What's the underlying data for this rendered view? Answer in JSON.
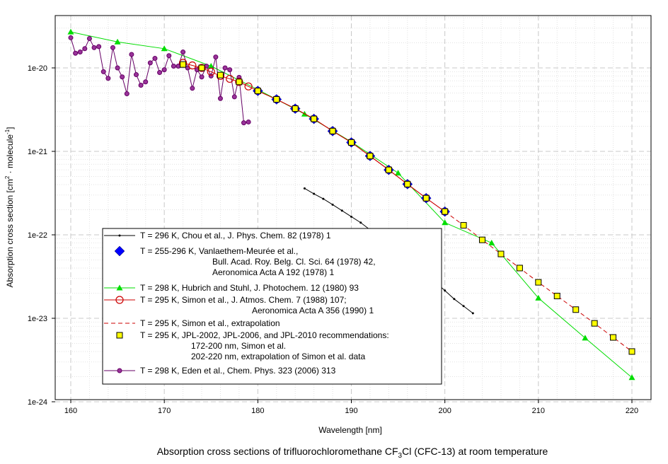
{
  "chart_data": {
    "type": "line",
    "yscale": "log",
    "xlim": [
      158,
      222
    ],
    "ylim": [
      1e-24,
      3.7e-20
    ],
    "xticks": [
      "160",
      "170",
      "180",
      "190",
      "200",
      "210",
      "220"
    ],
    "yticks": [
      "1e-20",
      "1e-21",
      "1e-22",
      "1e-23",
      "1e-24"
    ],
    "xlabel": "Wavelength [nm]",
    "ylabel": {
      "main": "Absorption cross section [cm",
      "sup1": "2",
      "mid": " · molecule",
      "sup2": "-1",
      "end": "]"
    },
    "caption": {
      "pre": "Absorption cross sections of trifluorochloromethane CF",
      "sub": "3",
      "post": "Cl (CFC-13) at room temperature"
    },
    "series": [
      {
        "name": "Chou",
        "color": "#000000",
        "marker": "dot",
        "x": [
          185,
          186,
          187,
          188,
          189,
          190,
          191,
          192,
          193,
          194,
          195,
          196,
          197,
          198,
          199,
          200,
          201,
          202,
          203
        ],
        "y": [
          3.6e-22,
          3.1e-22,
          2.7e-22,
          2.3e-22,
          1.95e-22,
          1.65e-22,
          1.4e-22,
          1.15e-22,
          9.4e-23,
          7.8e-23,
          6.4e-23,
          5.2e-23,
          4.2e-23,
          3.4e-23,
          2.7e-23,
          2.15e-23,
          1.7e-23,
          1.4e-23,
          1.15e-23
        ]
      },
      {
        "name": "Vanlaethem",
        "color": "#0000ff",
        "marker": "diamond",
        "x": [
          180,
          182,
          184,
          186,
          188,
          190,
          192,
          194,
          196,
          198,
          200
        ],
        "y": [
          5.3e-21,
          4.2e-21,
          3.25e-21,
          2.45e-21,
          1.75e-21,
          1.28e-21,
          8.8e-22,
          6e-22,
          4.05e-22,
          2.75e-22,
          1.9e-22
        ]
      },
      {
        "name": "Hubrich",
        "color": "#00dd00",
        "marker": "triangle",
        "x": [
          160,
          165,
          170,
          175,
          180,
          185,
          190,
          195,
          200,
          205,
          210,
          215,
          220
        ],
        "y": [
          2.7e-20,
          2.05e-20,
          1.7e-20,
          1.05e-20,
          5.5e-21,
          2.8e-21,
          1.3e-21,
          5.5e-22,
          1.4e-22,
          8e-23,
          1.75e-23,
          5.8e-24,
          1.95e-24
        ]
      },
      {
        "name": "Simon",
        "color": "#cc0000",
        "marker": "circle",
        "x": [
          172,
          173,
          174,
          175,
          176,
          177,
          178,
          179,
          180,
          182,
          184,
          186,
          188,
          190,
          192,
          194,
          196,
          198,
          200
        ],
        "y": [
          1.15e-20,
          1.07e-20,
          1e-20,
          9e-21,
          8e-21,
          7.4e-21,
          6.8e-21,
          6e-21,
          5.3e-21,
          4.2e-21,
          3.25e-21,
          2.45e-21,
          1.75e-21,
          1.28e-21,
          8.8e-22,
          6e-22,
          4.05e-22,
          2.75e-22,
          1.9e-22
        ]
      },
      {
        "name": "Simon extrapolation",
        "color": "#cc0000",
        "marker": "none",
        "dashed": true,
        "x": [
          200,
          202,
          204,
          206,
          208,
          210,
          212,
          214,
          216,
          218,
          220
        ],
        "y": [
          1.9e-22,
          1.3e-22,
          8.7e-23,
          5.9e-23,
          4e-23,
          2.7e-23,
          1.85e-23,
          1.27e-23,
          8.7e-24,
          5.9e-24,
          4e-24
        ]
      },
      {
        "name": "JPL",
        "color": "#000000",
        "fill": "#ffff00",
        "marker": "square",
        "x": [
          172,
          174,
          176,
          178,
          180,
          182,
          184,
          186,
          188,
          190,
          192,
          194,
          196,
          198,
          200,
          202,
          204,
          206,
          208,
          210,
          212,
          214,
          216,
          218,
          220
        ],
        "y": [
          1.1e-20,
          1e-20,
          8.2e-21,
          6.8e-21,
          5.3e-21,
          4.2e-21,
          3.25e-21,
          2.45e-21,
          1.75e-21,
          1.28e-21,
          8.8e-22,
          6e-22,
          4.05e-22,
          2.75e-22,
          1.9e-22,
          1.3e-22,
          8.7e-23,
          5.9e-23,
          4e-23,
          2.7e-23,
          1.85e-23,
          1.27e-23,
          8.7e-24,
          5.9e-24,
          4e-24
        ]
      },
      {
        "name": "Eden",
        "color": "#660066",
        "fill": "#993399",
        "marker": "dot-big",
        "x": [
          160,
          160.5,
          161,
          161.5,
          162,
          162.5,
          163,
          163.5,
          164,
          164.5,
          165,
          165.5,
          166,
          166.5,
          167,
          167.5,
          168,
          168.5,
          169,
          169.5,
          170,
          170.5,
          171,
          171.5,
          172,
          172.5,
          173,
          173.5,
          174,
          174.5,
          175,
          175.5,
          176,
          176.5,
          177,
          177.5,
          178,
          178.5,
          179
        ],
        "y": [
          2.3e-20,
          1.5e-20,
          1.55e-20,
          1.7e-20,
          2.25e-20,
          1.75e-20,
          1.8e-20,
          9e-21,
          7.5e-21,
          1.75e-20,
          1e-20,
          7.8e-21,
          4.9e-21,
          1.45e-20,
          8.3e-21,
          6.2e-21,
          6.8e-21,
          1.15e-20,
          1.3e-20,
          8.8e-21,
          9.5e-21,
          1.4e-20,
          1.05e-20,
          1.05e-20,
          1.55e-20,
          1e-20,
          5.7e-21,
          9.5e-21,
          7.8e-21,
          1.05e-20,
          8e-21,
          1.35e-20,
          4.3e-21,
          1e-20,
          9.5e-21,
          4.5e-21,
          7.7e-21,
          2.2e-21,
          2.25e-21
        ]
      }
    ],
    "legend": {
      "position": "center-left",
      "entries": [
        {
          "lines": [
            "T = 296 K, Chou et al., J. Phys. Chem. 82 (1978) 1"
          ]
        },
        {
          "lines": [
            "T = 255-296 K, Vanlaethem-Meurée et al.,",
            "Bull. Acad. Roy. Belg. Cl. Sci. 64 (1978) 42,",
            "Aeronomica Acta A 192 (1978) 1"
          ]
        },
        {
          "lines": [
            "T = 298 K, Hubrich and Stuhl, J. Photochem. 12 (1980) 93"
          ]
        },
        {
          "lines": [
            "T = 295 K, Simon et al., J. Atmos. Chem. 7 (1988) 107;",
            "Aeronomica Acta A 356 (1990) 1"
          ]
        },
        {
          "lines": [
            "T = 295 K, Simon et al., extrapolation"
          ]
        },
        {
          "lines": [
            "T = 295 K, JPL-2002, JPL-2006, and JPL-2010 recommendations:",
            "172-200 nm, Simon et al.",
            "202-220 nm, extrapolation of Simon et al. data"
          ]
        },
        {
          "lines": [
            "T = 298 K, Eden et al., Chem. Phys. 323 (2006) 313"
          ]
        }
      ]
    }
  }
}
